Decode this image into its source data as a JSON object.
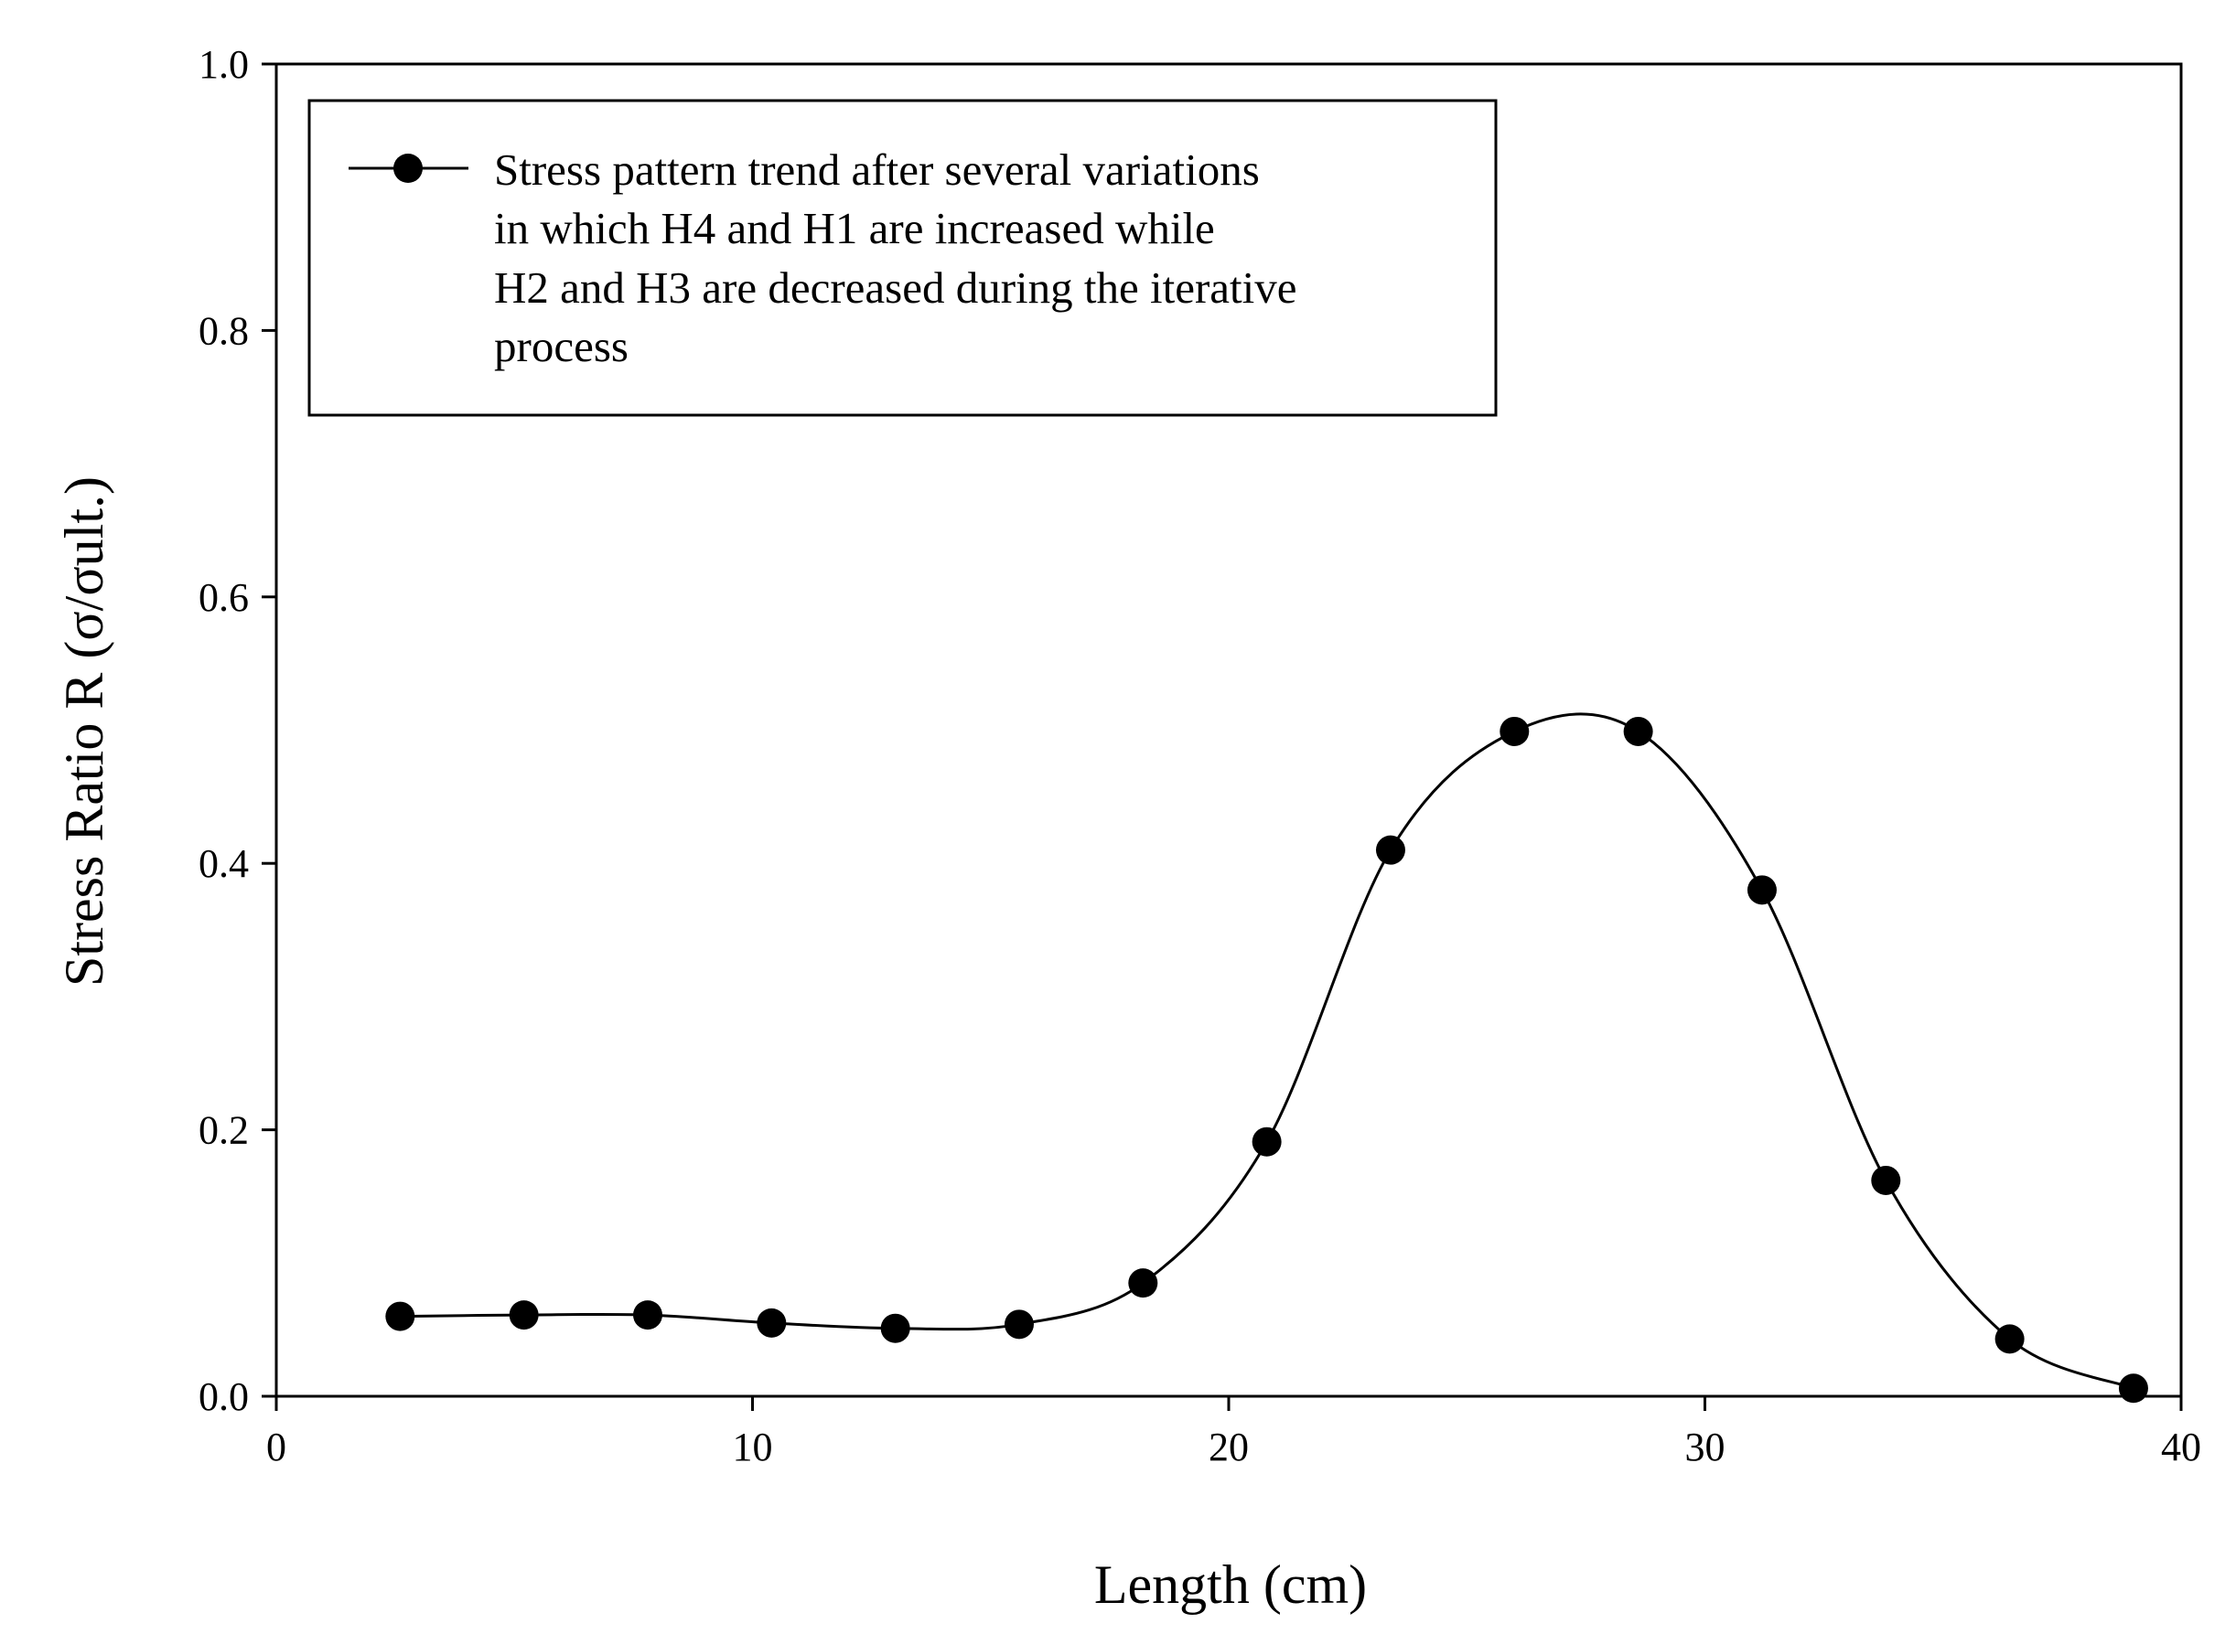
{
  "chart_data": {
    "type": "line",
    "title": "",
    "xlabel": "Length (cm)",
    "ylabel": "Stress Ratio R (σ/σult.)",
    "xlim": [
      0,
      40
    ],
    "ylim": [
      0.0,
      1.0
    ],
    "x_ticks": [
      0,
      10,
      20,
      30,
      40
    ],
    "x_tick_labels": [
      "0",
      "10",
      "20",
      "30",
      "40"
    ],
    "y_ticks": [
      0.0,
      0.2,
      0.4,
      0.6,
      0.8,
      1.0
    ],
    "y_tick_labels": [
      "0.0",
      "0.2",
      "0.4",
      "0.6",
      "0.8",
      "1.0"
    ],
    "grid": false,
    "legend_position": "top-left",
    "series": [
      {
        "name": "Stress pattern trend after several variations in which H4 and H1 are increased while H2 and H3 are decreased during the iterative process",
        "legend_lines": [
          "Stress pattern trend after several variations",
          "in which H4 and H1 are increased while",
          "H2 and H3 are decreased during the iterative",
          "process"
        ],
        "marker": "filled-circle",
        "line": "smooth",
        "color": "#000000",
        "x": [
          2.6,
          5.2,
          7.8,
          10.4,
          13.0,
          15.6,
          18.2,
          20.8,
          23.4,
          26.0,
          28.6,
          31.2,
          33.8,
          36.4,
          39.0
        ],
        "y": [
          0.06,
          0.061,
          0.061,
          0.055,
          0.051,
          0.054,
          0.085,
          0.191,
          0.41,
          0.499,
          0.499,
          0.38,
          0.162,
          0.043,
          0.006
        ]
      }
    ]
  }
}
